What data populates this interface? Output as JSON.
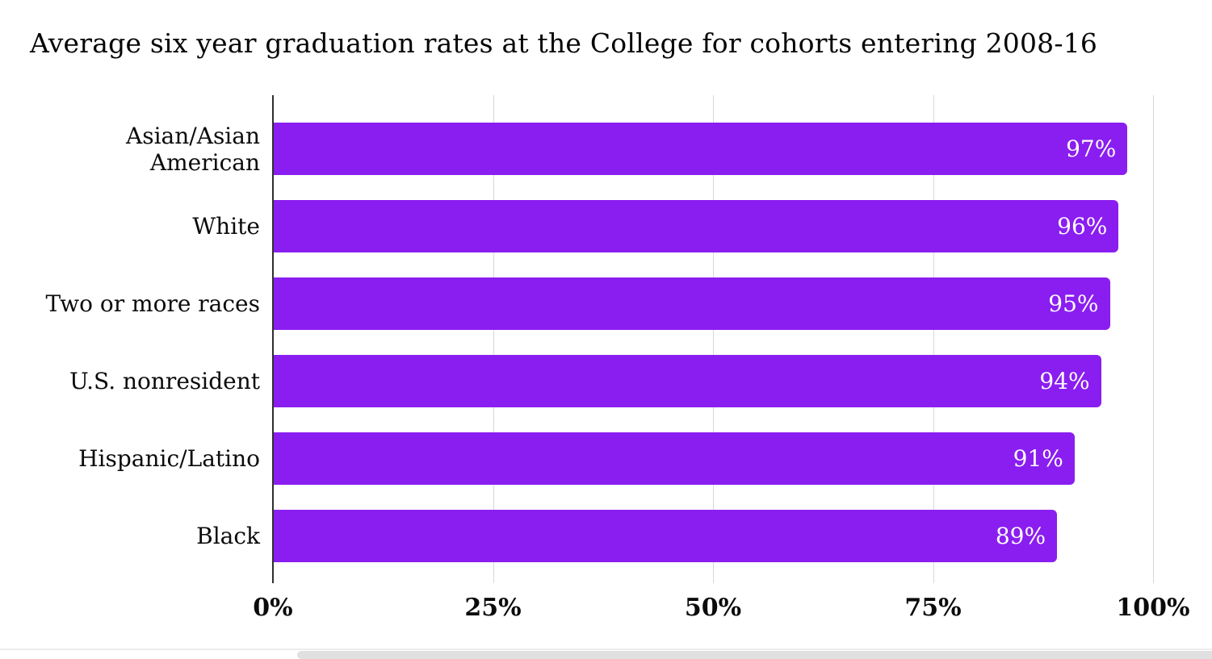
{
  "title": "Average six year graduation rates at the College for cohorts entering 2008-16",
  "chart_data": {
    "type": "bar",
    "orientation": "horizontal",
    "title": "Average six year graduation rates at the College for cohorts entering 2008-16",
    "categories": [
      "Asian/Asian American",
      "White",
      "Two or more races",
      "U.S. nonresident",
      "Hispanic/Latino",
      "Black"
    ],
    "values": [
      97,
      96,
      95,
      94,
      91,
      89
    ],
    "value_labels": [
      "97%",
      "96%",
      "95%",
      "94%",
      "91%",
      "89%"
    ],
    "x_tick_labels": [
      "0%",
      "25%",
      "50%",
      "75%",
      "100%"
    ],
    "x_tick_values": [
      0,
      25,
      50,
      75,
      100
    ],
    "xlim": [
      0,
      100
    ],
    "grid": true,
    "legend": "none",
    "bar_color": "#8a1ef0",
    "value_label_color": "#ffffff",
    "gridline_color": "#d8d8d8",
    "axis_line_color": "#2f2f2f"
  }
}
